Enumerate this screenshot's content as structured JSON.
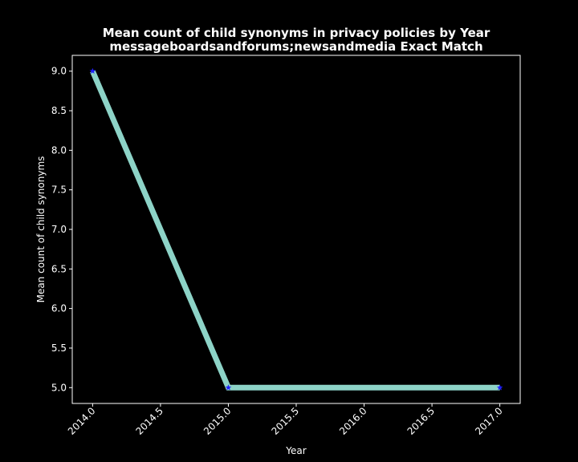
{
  "chart_data": {
    "type": "line",
    "title_line1": "Mean count of child synonyms in privacy policies by Year",
    "title_line2": "messageboardsandforums;newsandmedia Exact Match",
    "xlabel": "Year",
    "ylabel": "Mean count of child synonyms",
    "x": [
      2014,
      2015,
      2017
    ],
    "y": [
      9.0,
      5.0,
      5.0
    ],
    "xlim": [
      2013.85,
      2017.15
    ],
    "ylim": [
      4.8,
      9.2
    ],
    "xticks": [
      "2014.0",
      "2014.5",
      "2015.0",
      "2015.5",
      "2016.0",
      "2016.5",
      "2017.0"
    ],
    "xtick_values": [
      2014.0,
      2014.5,
      2015.0,
      2015.5,
      2016.0,
      2016.5,
      2017.0
    ],
    "yticks": [
      "5.0",
      "5.5",
      "6.0",
      "6.5",
      "7.0",
      "7.5",
      "8.0",
      "8.5",
      "9.0"
    ],
    "ytick_values": [
      5.0,
      5.5,
      6.0,
      6.5,
      7.0,
      7.5,
      8.0,
      8.5,
      9.0
    ],
    "grid": false,
    "line_color": "#8dd3c7",
    "marker_color": "#1f1fff",
    "marker": "star",
    "background": "#000000"
  }
}
